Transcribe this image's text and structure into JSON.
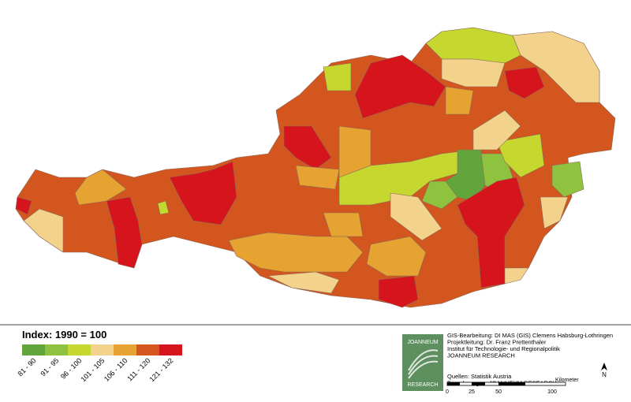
{
  "legend": {
    "title": "Index: 1990 = 100",
    "classes": [
      {
        "label": "81 - 90",
        "color": "#62a63b"
      },
      {
        "label": "91 - 95",
        "color": "#8fc23e"
      },
      {
        "label": "96 - 100",
        "color": "#c6d830"
      },
      {
        "label": "101 - 105",
        "color": "#f3d38c"
      },
      {
        "label": "106 - 110",
        "color": "#e6a331"
      },
      {
        "label": "111 - 120",
        "color": "#d2561e"
      },
      {
        "label": "121 - 132",
        "color": "#d5141b"
      }
    ]
  },
  "logo": {
    "top": "JOANNEUM",
    "bottom": "RESEARCH"
  },
  "credits": [
    "GIS-Bearbeitung: DI MAS (GIS) Clemens Habsburg-Lothringen",
    "Projektleitung: Dr. Franz Prettenthaler",
    "Institut für Technologie- und Regionalpolitik",
    "JOANNEUM RESEARCH",
    "Quellen: Statistik Austria",
    "Berechnungen: JOANNEUM RESEARCH"
  ],
  "scale": {
    "labels": [
      "0",
      "25",
      "50",
      "100"
    ],
    "unit": "Kilometer"
  },
  "north": "N"
}
